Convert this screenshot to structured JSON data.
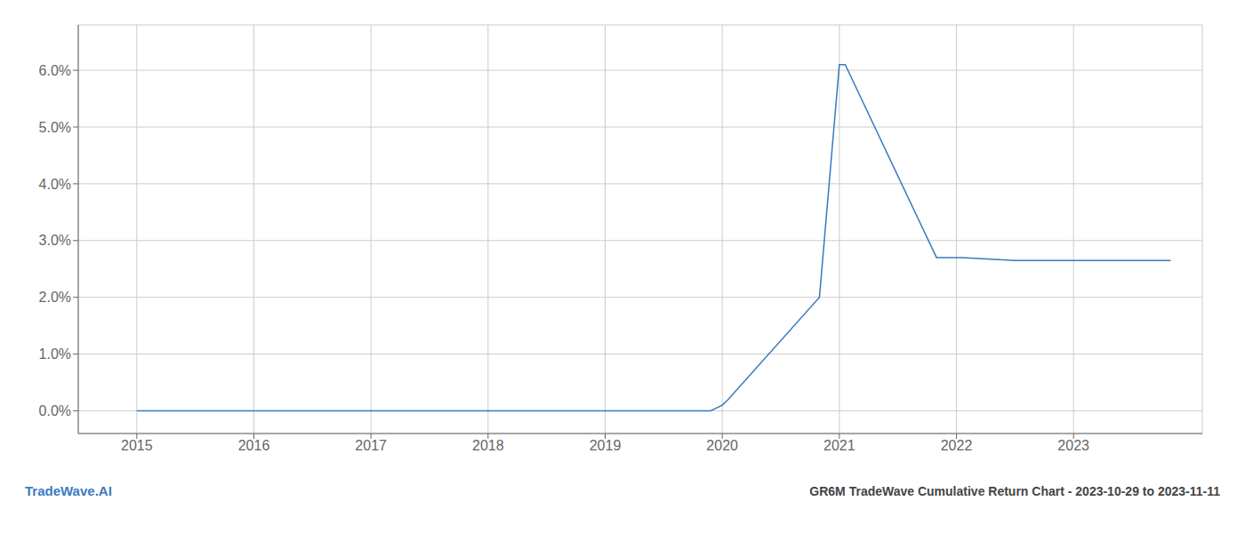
{
  "chart_data": {
    "type": "line",
    "title": "GR6M TradeWave Cumulative Return Chart - 2023-10-29 to 2023-11-11",
    "annotations": [
      {
        "text": "TradeWave.AI",
        "color": "#3a7abf"
      }
    ],
    "x": [
      2015.0,
      2016.0,
      2017.0,
      2018.0,
      2019.0,
      2019.75,
      2019.9,
      2020.0,
      2020.05,
      2020.83,
      2021.0,
      2021.05,
      2021.83,
      2022.0,
      2022.05,
      2022.5,
      2023.0,
      2023.83
    ],
    "values": [
      0.0,
      0.0,
      0.0,
      0.0,
      0.0,
      0.0,
      0.0,
      0.001,
      0.002,
      0.02,
      0.061,
      0.061,
      0.027,
      0.027,
      0.027,
      0.0265,
      0.0265,
      0.0265
    ],
    "color": "#3a7abf",
    "xlim": [
      2014.5,
      2024.1
    ],
    "xticks": [
      2015,
      2016,
      2017,
      2018,
      2019,
      2020,
      2021,
      2022,
      2023
    ],
    "ylim": [
      -0.004,
      0.068
    ],
    "yticks": [
      {
        "value": 0.0,
        "label": "0.0%"
      },
      {
        "value": 0.01,
        "label": "1.0%"
      },
      {
        "value": 0.02,
        "label": "2.0%"
      },
      {
        "value": 0.03,
        "label": "3.0%"
      },
      {
        "value": 0.04,
        "label": "4.0%"
      },
      {
        "value": 0.05,
        "label": "5.0%"
      },
      {
        "value": 0.06,
        "label": "6.0%"
      }
    ],
    "grid": true
  }
}
